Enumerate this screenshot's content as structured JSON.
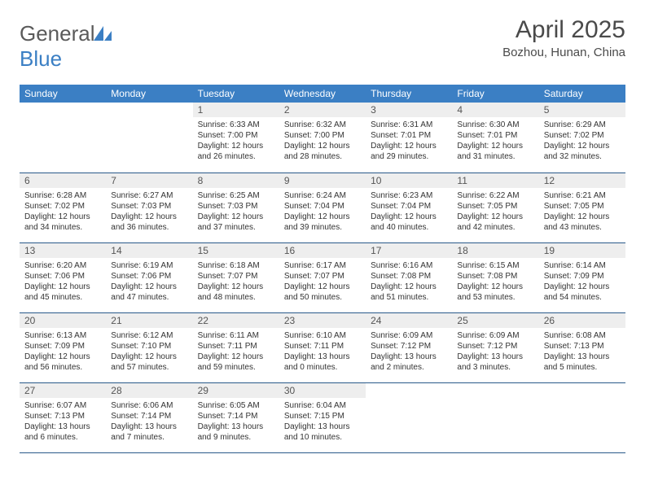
{
  "logo": {
    "text_gray": "General",
    "text_blue": "Blue",
    "shape_color": "#3b7fc4"
  },
  "title": "April 2025",
  "location": "Bozhou, Hunan, China",
  "colors": {
    "header_bg": "#3b7fc4",
    "header_text": "#ffffff",
    "daynum_bg": "#eeeeee",
    "row_divider": "#2a5a8a",
    "body_text": "#333333"
  },
  "weekdays": [
    "Sunday",
    "Monday",
    "Tuesday",
    "Wednesday",
    "Thursday",
    "Friday",
    "Saturday"
  ],
  "weeks": [
    [
      {
        "empty": true
      },
      {
        "empty": true
      },
      {
        "n": "1",
        "sr": "Sunrise: 6:33 AM",
        "ss": "Sunset: 7:00 PM",
        "dl": "Daylight: 12 hours and 26 minutes."
      },
      {
        "n": "2",
        "sr": "Sunrise: 6:32 AM",
        "ss": "Sunset: 7:00 PM",
        "dl": "Daylight: 12 hours and 28 minutes."
      },
      {
        "n": "3",
        "sr": "Sunrise: 6:31 AM",
        "ss": "Sunset: 7:01 PM",
        "dl": "Daylight: 12 hours and 29 minutes."
      },
      {
        "n": "4",
        "sr": "Sunrise: 6:30 AM",
        "ss": "Sunset: 7:01 PM",
        "dl": "Daylight: 12 hours and 31 minutes."
      },
      {
        "n": "5",
        "sr": "Sunrise: 6:29 AM",
        "ss": "Sunset: 7:02 PM",
        "dl": "Daylight: 12 hours and 32 minutes."
      }
    ],
    [
      {
        "n": "6",
        "sr": "Sunrise: 6:28 AM",
        "ss": "Sunset: 7:02 PM",
        "dl": "Daylight: 12 hours and 34 minutes."
      },
      {
        "n": "7",
        "sr": "Sunrise: 6:27 AM",
        "ss": "Sunset: 7:03 PM",
        "dl": "Daylight: 12 hours and 36 minutes."
      },
      {
        "n": "8",
        "sr": "Sunrise: 6:25 AM",
        "ss": "Sunset: 7:03 PM",
        "dl": "Daylight: 12 hours and 37 minutes."
      },
      {
        "n": "9",
        "sr": "Sunrise: 6:24 AM",
        "ss": "Sunset: 7:04 PM",
        "dl": "Daylight: 12 hours and 39 minutes."
      },
      {
        "n": "10",
        "sr": "Sunrise: 6:23 AM",
        "ss": "Sunset: 7:04 PM",
        "dl": "Daylight: 12 hours and 40 minutes."
      },
      {
        "n": "11",
        "sr": "Sunrise: 6:22 AM",
        "ss": "Sunset: 7:05 PM",
        "dl": "Daylight: 12 hours and 42 minutes."
      },
      {
        "n": "12",
        "sr": "Sunrise: 6:21 AM",
        "ss": "Sunset: 7:05 PM",
        "dl": "Daylight: 12 hours and 43 minutes."
      }
    ],
    [
      {
        "n": "13",
        "sr": "Sunrise: 6:20 AM",
        "ss": "Sunset: 7:06 PM",
        "dl": "Daylight: 12 hours and 45 minutes."
      },
      {
        "n": "14",
        "sr": "Sunrise: 6:19 AM",
        "ss": "Sunset: 7:06 PM",
        "dl": "Daylight: 12 hours and 47 minutes."
      },
      {
        "n": "15",
        "sr": "Sunrise: 6:18 AM",
        "ss": "Sunset: 7:07 PM",
        "dl": "Daylight: 12 hours and 48 minutes."
      },
      {
        "n": "16",
        "sr": "Sunrise: 6:17 AM",
        "ss": "Sunset: 7:07 PM",
        "dl": "Daylight: 12 hours and 50 minutes."
      },
      {
        "n": "17",
        "sr": "Sunrise: 6:16 AM",
        "ss": "Sunset: 7:08 PM",
        "dl": "Daylight: 12 hours and 51 minutes."
      },
      {
        "n": "18",
        "sr": "Sunrise: 6:15 AM",
        "ss": "Sunset: 7:08 PM",
        "dl": "Daylight: 12 hours and 53 minutes."
      },
      {
        "n": "19",
        "sr": "Sunrise: 6:14 AM",
        "ss": "Sunset: 7:09 PM",
        "dl": "Daylight: 12 hours and 54 minutes."
      }
    ],
    [
      {
        "n": "20",
        "sr": "Sunrise: 6:13 AM",
        "ss": "Sunset: 7:09 PM",
        "dl": "Daylight: 12 hours and 56 minutes."
      },
      {
        "n": "21",
        "sr": "Sunrise: 6:12 AM",
        "ss": "Sunset: 7:10 PM",
        "dl": "Daylight: 12 hours and 57 minutes."
      },
      {
        "n": "22",
        "sr": "Sunrise: 6:11 AM",
        "ss": "Sunset: 7:11 PM",
        "dl": "Daylight: 12 hours and 59 minutes."
      },
      {
        "n": "23",
        "sr": "Sunrise: 6:10 AM",
        "ss": "Sunset: 7:11 PM",
        "dl": "Daylight: 13 hours and 0 minutes."
      },
      {
        "n": "24",
        "sr": "Sunrise: 6:09 AM",
        "ss": "Sunset: 7:12 PM",
        "dl": "Daylight: 13 hours and 2 minutes."
      },
      {
        "n": "25",
        "sr": "Sunrise: 6:09 AM",
        "ss": "Sunset: 7:12 PM",
        "dl": "Daylight: 13 hours and 3 minutes."
      },
      {
        "n": "26",
        "sr": "Sunrise: 6:08 AM",
        "ss": "Sunset: 7:13 PM",
        "dl": "Daylight: 13 hours and 5 minutes."
      }
    ],
    [
      {
        "n": "27",
        "sr": "Sunrise: 6:07 AM",
        "ss": "Sunset: 7:13 PM",
        "dl": "Daylight: 13 hours and 6 minutes."
      },
      {
        "n": "28",
        "sr": "Sunrise: 6:06 AM",
        "ss": "Sunset: 7:14 PM",
        "dl": "Daylight: 13 hours and 7 minutes."
      },
      {
        "n": "29",
        "sr": "Sunrise: 6:05 AM",
        "ss": "Sunset: 7:14 PM",
        "dl": "Daylight: 13 hours and 9 minutes."
      },
      {
        "n": "30",
        "sr": "Sunrise: 6:04 AM",
        "ss": "Sunset: 7:15 PM",
        "dl": "Daylight: 13 hours and 10 minutes."
      },
      {
        "empty": true
      },
      {
        "empty": true
      },
      {
        "empty": true
      }
    ]
  ]
}
